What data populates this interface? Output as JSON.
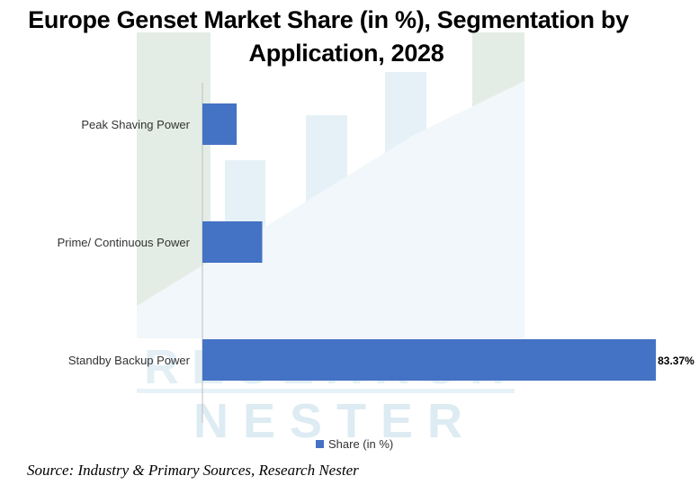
{
  "colors": {
    "bar": "#4472c4",
    "axis": "#bfbfbf",
    "text": "#333333",
    "label": "#000000"
  },
  "title_line1": "Europe Genset Market Share (in %), Segmentation by",
  "title_line2": "Application, 2028",
  "chart_data": {
    "type": "bar",
    "orientation": "horizontal",
    "categories": [
      "Peak Shaving Power",
      "Prime/ Continuous Power",
      "Standby Backup Power"
    ],
    "series": [
      {
        "name": "Share (in %)",
        "values": [
          6.3,
          11.0,
          83.37
        ]
      }
    ],
    "data_labels": [
      "",
      "",
      "83.37%"
    ],
    "xlim": [
      0,
      86
    ],
    "grid": false,
    "legend": "bottom"
  },
  "legend_label": "Share (in %)",
  "watermark": {
    "word1": "RESEARCH",
    "word2": "NESTER"
  },
  "source": "Source: Industry & Primary Sources, Research Nester"
}
